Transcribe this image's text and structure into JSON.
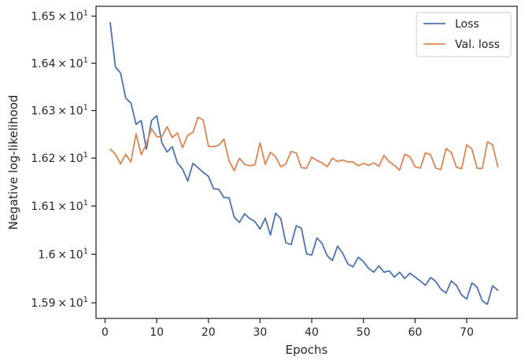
{
  "chart_data": {
    "type": "line",
    "xlabel": "Epochs",
    "ylabel": "Negative log-likelihood",
    "xlim": [
      -1.75,
      79.75
    ],
    "ylim": [
      15.868,
      16.521
    ],
    "yscale": "log",
    "grid": false,
    "legend_position": "top-right",
    "x_ticks": [
      0,
      10,
      20,
      30,
      40,
      50,
      60,
      70
    ],
    "y_ticks": [
      {
        "value": 15.9,
        "mantissa": "1.59",
        "base": "10",
        "exp": "1"
      },
      {
        "value": 16.0,
        "mantissa": "1.6",
        "base": "10",
        "exp": "1"
      },
      {
        "value": 16.1,
        "mantissa": "1.61",
        "base": "10",
        "exp": "1"
      },
      {
        "value": 16.2,
        "mantissa": "1.62",
        "base": "10",
        "exp": "1"
      },
      {
        "value": 16.3,
        "mantissa": "1.63",
        "base": "10",
        "exp": "1"
      },
      {
        "value": 16.4,
        "mantissa": "1.64",
        "base": "10",
        "exp": "1"
      },
      {
        "value": 16.5,
        "mantissa": "1.65",
        "base": "10",
        "exp": "1"
      }
    ],
    "times_sign": "×",
    "x": [
      1,
      2,
      3,
      4,
      5,
      6,
      7,
      8,
      9,
      10,
      11,
      12,
      13,
      14,
      15,
      16,
      17,
      18,
      19,
      20,
      21,
      22,
      23,
      24,
      25,
      26,
      27,
      28,
      29,
      30,
      31,
      32,
      33,
      34,
      35,
      36,
      37,
      38,
      39,
      40,
      41,
      42,
      43,
      44,
      45,
      46,
      47,
      48,
      49,
      50,
      51,
      52,
      53,
      54,
      55,
      56,
      57,
      58,
      59,
      60,
      61,
      62,
      63,
      64,
      65,
      66,
      67,
      68,
      69,
      70,
      71,
      72,
      73,
      74,
      75,
      76
    ],
    "series": [
      {
        "name": "Loss",
        "color": "#4c72b0",
        "values": [
          16.486,
          16.392,
          16.379,
          16.326,
          16.316,
          16.271,
          16.279,
          16.219,
          16.279,
          16.289,
          16.232,
          16.213,
          16.224,
          16.19,
          16.177,
          16.152,
          16.189,
          16.18,
          16.17,
          16.162,
          16.136,
          16.135,
          16.118,
          16.117,
          16.077,
          16.066,
          16.084,
          16.074,
          16.068,
          16.052,
          16.075,
          16.04,
          16.085,
          16.074,
          16.024,
          16.02,
          16.059,
          16.054,
          16.001,
          15.998,
          16.034,
          16.022,
          15.997,
          15.987,
          16.017,
          16.002,
          15.98,
          15.974,
          15.994,
          15.985,
          15.971,
          15.963,
          15.976,
          15.963,
          15.966,
          15.953,
          15.963,
          15.95,
          15.961,
          15.953,
          15.945,
          15.936,
          15.952,
          15.944,
          15.928,
          15.92,
          15.945,
          15.936,
          15.916,
          15.908,
          15.941,
          15.932,
          15.904,
          15.897,
          15.935,
          15.926
        ]
      },
      {
        "name": "Val. loss",
        "color": "#dd8452",
        "values": [
          16.219,
          16.208,
          16.188,
          16.208,
          16.192,
          16.251,
          16.207,
          16.23,
          16.262,
          16.245,
          16.245,
          16.266,
          16.243,
          16.253,
          16.222,
          16.248,
          16.254,
          16.286,
          16.28,
          16.225,
          16.224,
          16.227,
          16.24,
          16.194,
          16.174,
          16.2,
          16.187,
          16.184,
          16.186,
          16.232,
          16.187,
          16.212,
          16.203,
          16.182,
          16.188,
          16.214,
          16.211,
          16.18,
          16.179,
          16.202,
          16.195,
          16.19,
          16.182,
          16.2,
          16.193,
          16.196,
          16.192,
          16.192,
          16.184,
          16.189,
          16.185,
          16.19,
          16.183,
          16.206,
          16.192,
          16.185,
          16.175,
          16.208,
          16.203,
          16.182,
          16.179,
          16.211,
          16.207,
          16.179,
          16.176,
          16.22,
          16.212,
          16.181,
          16.178,
          16.228,
          16.219,
          16.179,
          16.178,
          16.234,
          16.228,
          16.182
        ]
      }
    ]
  }
}
